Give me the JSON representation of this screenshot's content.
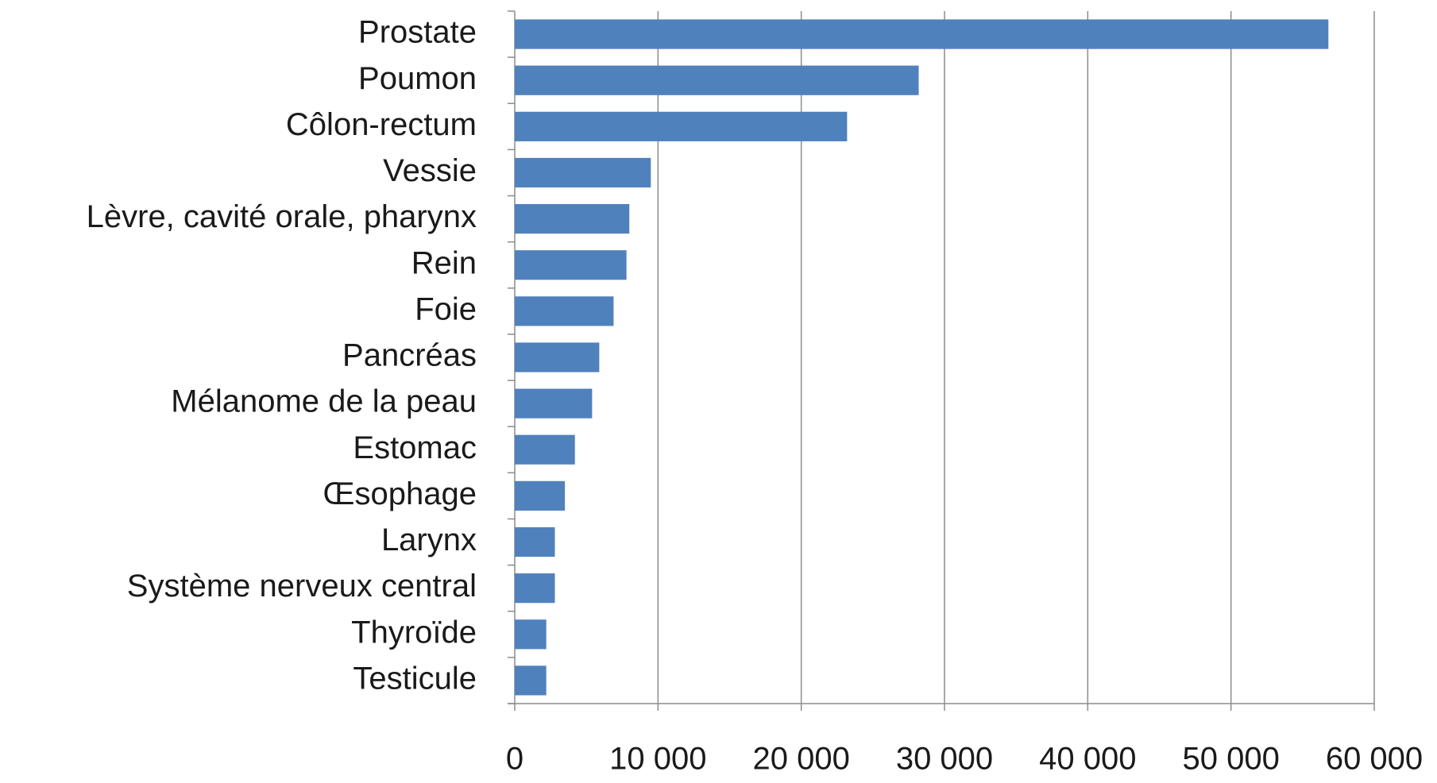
{
  "chart_data": {
    "type": "barh",
    "categories": [
      "Prostate",
      "Poumon",
      "Côlon-rectum",
      "Vessie",
      "Lèvre, cavité orale, pharynx",
      "Rein",
      "Foie",
      "Pancréas",
      "Mélanome de la peau",
      "Estomac",
      "Œsophage",
      "Larynx",
      "Système nerveux central",
      "Thyroïde",
      "Testicule"
    ],
    "values": [
      56800,
      28200,
      23200,
      9500,
      8000,
      7800,
      6900,
      5900,
      5400,
      4200,
      3500,
      2800,
      2800,
      2200,
      2200
    ],
    "color": "#4f81bd",
    "xlim": [
      0,
      60000
    ],
    "xticks": [
      0,
      {
        "value": 10000,
        "label": "10 000"
      },
      {
        "value": 20000,
        "label": "20 000"
      },
      {
        "value": 30000,
        "label": "30 000"
      },
      {
        "value": 40000,
        "label": "40 000"
      },
      {
        "value": 50000,
        "label": "50 000"
      },
      {
        "value": 60000,
        "label": "60 000"
      }
    ],
    "grid": true
  }
}
